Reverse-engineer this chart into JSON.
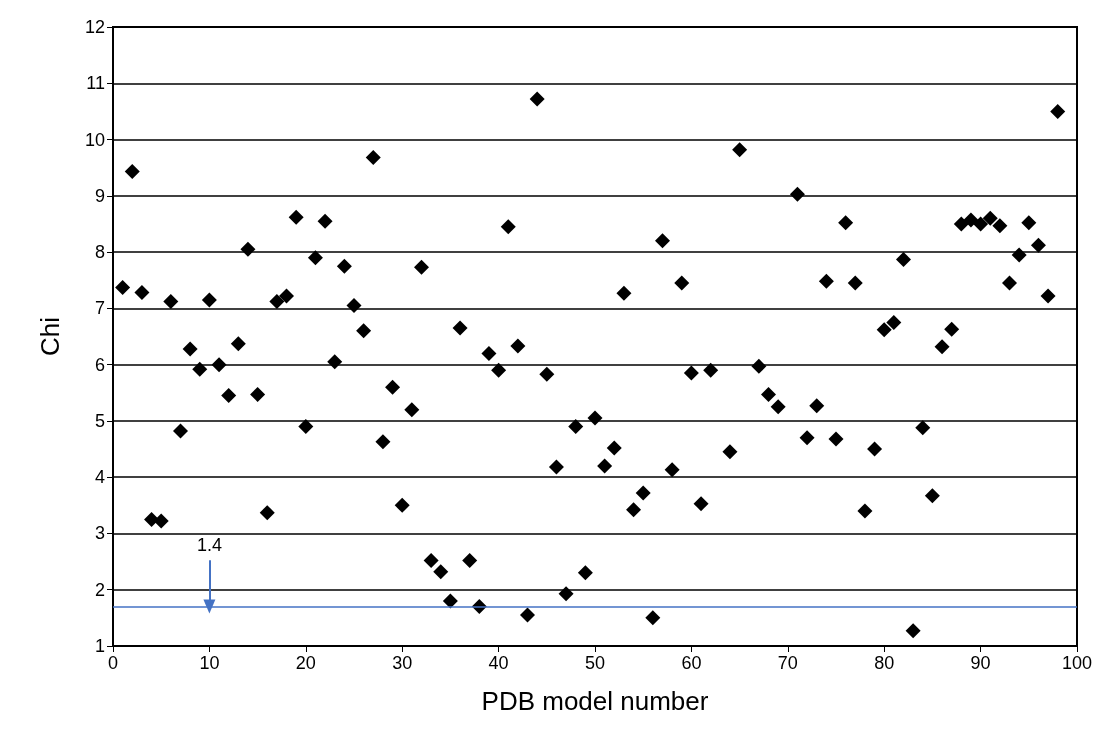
{
  "chart_data": {
    "type": "scatter",
    "xlabel": "PDB model number",
    "ylabel": "Chi",
    "x": [
      1,
      2,
      3,
      4,
      5,
      6,
      7,
      8,
      9,
      10,
      11,
      12,
      13,
      14,
      15,
      16,
      17,
      18,
      19,
      20,
      21,
      22,
      23,
      24,
      25,
      26,
      27,
      28,
      29,
      30,
      31,
      32,
      33,
      34,
      35,
      36,
      37,
      38,
      39,
      40,
      41,
      42,
      43,
      44,
      45,
      46,
      47,
      48,
      49,
      50,
      51,
      52,
      53,
      54,
      55,
      56,
      57,
      58,
      59,
      60,
      61,
      62,
      64,
      65,
      67,
      68,
      69,
      71,
      72,
      73,
      74,
      75,
      76,
      77,
      78,
      79,
      80,
      81,
      82,
      83,
      84,
      85,
      86,
      87,
      88,
      89,
      90,
      91,
      92,
      93,
      94,
      95,
      96,
      97,
      98
    ],
    "series": [
      {
        "color": "#000000",
        "values": [
          7.37,
          9.43,
          7.28,
          3.25,
          3.22,
          7.12,
          4.82,
          6.28,
          5.92,
          7.15,
          6.0,
          5.45,
          6.37,
          8.05,
          5.47,
          3.37,
          7.12,
          7.22,
          8.62,
          4.9,
          7.9,
          8.55,
          6.05,
          7.75,
          7.05,
          6.6,
          9.68,
          4.63,
          5.6,
          3.5,
          5.2,
          7.73,
          2.52,
          2.32,
          1.8,
          6.65,
          2.52,
          1.7,
          6.2,
          5.9,
          8.45,
          6.33,
          1.55,
          10.72,
          5.83,
          4.18,
          1.93,
          4.9,
          2.3,
          5.05,
          4.2,
          4.52,
          7.27,
          3.42,
          3.72,
          1.5,
          8.2,
          4.13,
          7.45,
          5.85,
          3.53,
          5.9,
          4.45,
          9.82,
          5.97,
          5.47,
          5.25,
          9.03,
          4.7,
          5.27,
          7.48,
          4.68,
          8.52,
          7.45,
          3.4,
          4.5,
          6.62,
          6.75,
          7.87,
          1.27,
          4.88,
          3.67,
          6.32,
          6.63,
          8.5,
          8.57,
          8.5,
          8.6,
          8.47,
          7.45,
          7.95,
          8.52,
          8.12,
          7.22,
          10.5
        ]
      }
    ],
    "xlim": [
      0,
      100
    ],
    "xticks": [
      0,
      10,
      20,
      30,
      40,
      50,
      60,
      70,
      80,
      90,
      100
    ],
    "ylim": [
      1,
      12
    ],
    "yticks": [
      1,
      2,
      3,
      4,
      5,
      6,
      7,
      8,
      9,
      10,
      11,
      12
    ],
    "grid": "y",
    "marker": "diamond",
    "ref_lines": [
      {
        "axis": "y",
        "value": 1.7,
        "color": "#4472c4"
      }
    ],
    "annotations": [
      {
        "text": "1.4",
        "x": 10,
        "y": 1.7
      }
    ]
  }
}
